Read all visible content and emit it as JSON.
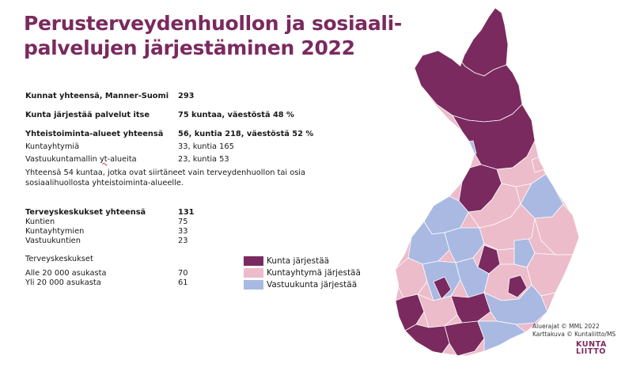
{
  "title": {
    "line1": "Perusterveydenhuollon ja sosiaali-",
    "line2": "palvelujen järjestäminen 2022"
  },
  "stats": {
    "total": {
      "label": "Kunnat yhteensä, Manner-Suomi",
      "value": "293"
    },
    "self": {
      "label": "Kunta järjestää palvelut itse",
      "value": "75 kuntaa, väestöstä 48 %"
    },
    "coop": {
      "label": "Yhteistoiminta-alueet yhteensä",
      "value": "56, kuntia 218, väestöstä 52 %"
    },
    "kuntayhtymia": {
      "label": "Kuntayhtymiä",
      "value": "33, kuntia 165"
    },
    "vastuukunta": {
      "label_pre": "Vastuukuntamallin ",
      "label_squig": "yt",
      "label_post": "-alueita",
      "value": "23, kuntia 53"
    },
    "note_line1": "Yhteensä 54 kuntaa, jotka ovat siirtäneet vain terveydenhuollon tai osia",
    "note_line2": "sosiaalihuollosta yhteistoiminta-alueelle."
  },
  "health_centers": {
    "total": {
      "label": "Terveyskeskukset yhteensä",
      "value": "131"
    },
    "kuntien": {
      "label": "Kuntien",
      "value": "75"
    },
    "kuntayhtymien": {
      "label": "Kuntayhtymien",
      "value": "33"
    },
    "vastuukuntien": {
      "label": "Vastuukuntien",
      "value": "23"
    },
    "subheading": "Terveyskeskukset",
    "under": {
      "label": "Alle 20 000 asukasta",
      "value": "70"
    },
    "over": {
      "label": "Yli 20 000 asukasta",
      "value": "61"
    }
  },
  "legend": [
    {
      "label": "Kunta järjestää",
      "color": "#7a2a5e"
    },
    {
      "label": "Kuntayhtymä järjestää",
      "color": "#ecbccb"
    },
    {
      "label": "Vastuukunta järjestää",
      "color": "#a9b9e2"
    }
  ],
  "credits": {
    "line1": "Aluerajat © MML 2022",
    "line2": "Karttakuva © Kuntaliitto/MS"
  },
  "logo": {
    "line1": "KUNTA",
    "line2": "LIITTO"
  }
}
